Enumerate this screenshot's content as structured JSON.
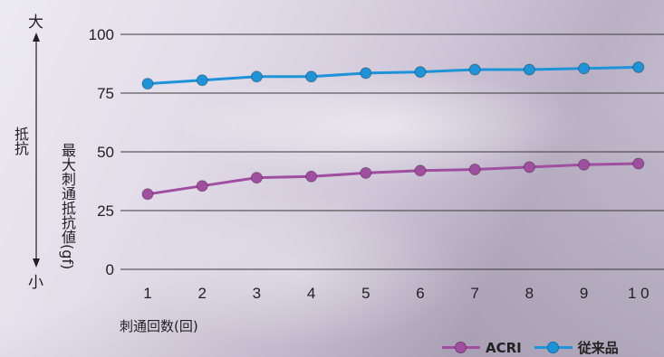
{
  "chart_data": {
    "type": "line",
    "x": [
      "1",
      "2",
      "3",
      "4",
      "5",
      "6",
      "7",
      "8",
      "9",
      "10"
    ],
    "x_tick_labels": [
      "1",
      "2",
      "3",
      "4",
      "5",
      "6",
      "7",
      "8",
      "9",
      "1 0"
    ],
    "xlabel": "刺通回数(回)",
    "ylabel": "最大刺通抵抗値(gf)",
    "ylim": [
      0,
      100
    ],
    "y_ticks": [
      0,
      25,
      50,
      75,
      100
    ],
    "grid": true,
    "legend_position": "bottom-right",
    "resistance_axis": {
      "label": "抵抗",
      "high": "大",
      "low": "小"
    },
    "series": [
      {
        "name": "ACRI",
        "color": "#a04ea0",
        "values": [
          32,
          35.5,
          39,
          39.5,
          41,
          42,
          42.5,
          43.5,
          44.5,
          45
        ]
      },
      {
        "name": "従来品",
        "color": "#1e93d8",
        "values": [
          79,
          80.5,
          82,
          82,
          83.5,
          84,
          85,
          85,
          85.5,
          86
        ]
      }
    ]
  }
}
